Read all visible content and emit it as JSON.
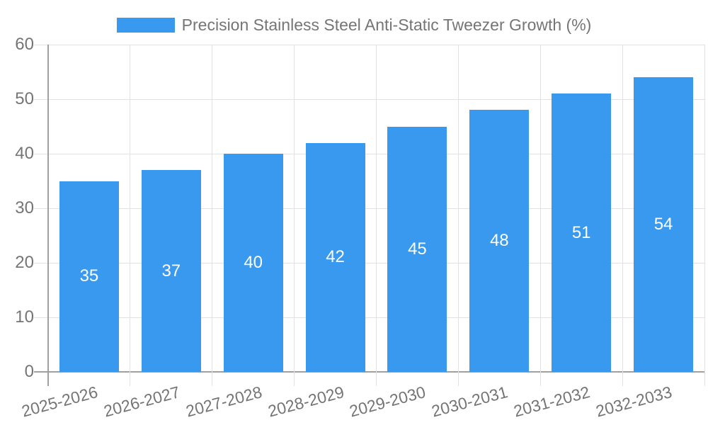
{
  "chart_data": {
    "type": "bar",
    "title": "Precision Stainless Steel Anti-Static Tweezer Growth (%)",
    "categories": [
      "2025-2026",
      "2026-2027",
      "2027-2028",
      "2028-2029",
      "2029-2030",
      "2030-2031",
      "2031-2032",
      "2032-2033"
    ],
    "values": [
      35,
      37,
      40,
      42,
      45,
      48,
      51,
      54
    ],
    "xlabel": "",
    "ylabel": "",
    "ylim": [
      0,
      60
    ],
    "yticks": [
      0,
      10,
      20,
      30,
      40,
      50,
      60
    ],
    "grid": true,
    "legend_position": "top-center",
    "x_tick_label_rotation_deg": -15,
    "colors": {
      "bar": "#3899EF",
      "value_label": "#FFFFFF",
      "axis": "#A0A0A0",
      "grid": "#E2E2E2",
      "text": "#757575"
    }
  }
}
